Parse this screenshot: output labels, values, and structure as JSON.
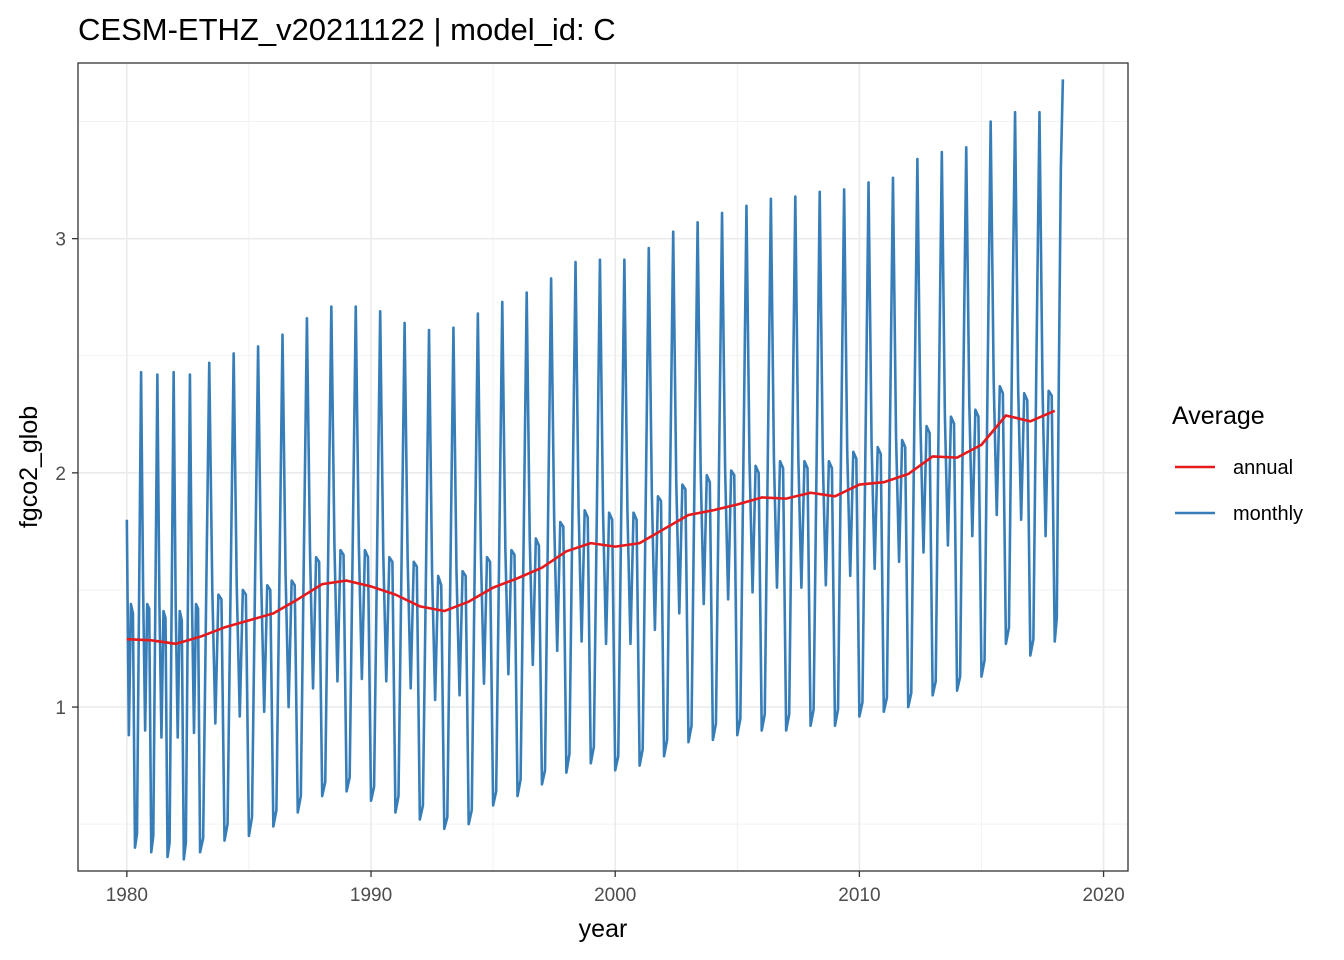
{
  "chart_data": {
    "type": "line",
    "title": "CESM-ETHZ_v20211122 | model_id: C",
    "xlabel": "year",
    "ylabel": "fgco2_glob",
    "xlim": [
      1978,
      2021
    ],
    "ylim": [
      0.3,
      3.75
    ],
    "x_ticks": [
      1980,
      1990,
      2000,
      2010,
      2020
    ],
    "x_tick_labels": [
      "1980",
      "1990",
      "2000",
      "2010",
      "2020"
    ],
    "y_ticks": [
      1,
      2,
      3
    ],
    "y_tick_labels": [
      "1",
      "2",
      "3"
    ],
    "grid": true,
    "legend": {
      "title": "Average",
      "placement": "right",
      "entries": [
        {
          "label": "annual",
          "color": "#e41a1c"
        },
        {
          "label": "monthly",
          "color": "#377eb8"
        }
      ]
    },
    "series": [
      {
        "name": "annual",
        "color": "#e41a1c",
        "x": [
          1980,
          1981,
          1982,
          1983,
          1984,
          1985,
          1986,
          1987,
          1988,
          1989,
          1990,
          1991,
          1992,
          1993,
          1994,
          1995,
          1996,
          1997,
          1998,
          1999,
          2000,
          2001,
          2002,
          2003,
          2004,
          2005,
          2006,
          2007,
          2008,
          2009,
          2010,
          2011,
          2012,
          2013,
          2014,
          2015,
          2016,
          2017,
          2018
        ],
        "y": [
          1.29,
          1.285,
          1.27,
          1.3,
          1.34,
          1.37,
          1.4,
          1.46,
          1.525,
          1.54,
          1.515,
          1.48,
          1.43,
          1.41,
          1.45,
          1.51,
          1.55,
          1.595,
          1.665,
          1.7,
          1.685,
          1.7,
          1.76,
          1.82,
          1.84,
          1.865,
          1.895,
          1.89,
          1.915,
          1.9,
          1.95,
          1.96,
          1.995,
          2.07,
          2.065,
          2.12,
          2.245,
          2.22,
          2.265
        ]
      },
      {
        "name": "monthly",
        "color": "#377eb8",
        "years": [
          1980,
          1981,
          1982,
          1983,
          1984,
          1985,
          1986,
          1987,
          1988,
          1989,
          1990,
          1991,
          1992,
          1993,
          1994,
          1995,
          1996,
          1997,
          1998,
          1999,
          2000,
          2001,
          2002,
          2003,
          2004,
          2005,
          2006,
          2007,
          2008,
          2009,
          2010,
          2011,
          2012,
          2013,
          2014,
          2015,
          2016,
          2017,
          2018
        ],
        "monthly_values": [
          [
            1.8,
            0.88,
            1.44,
            1.4,
            0.4,
            0.46,
            1.45,
            2.43,
            1.5,
            0.9,
            1.44,
            1.42
          ],
          [
            0.38,
            0.45,
            1.44,
            2.42,
            1.45,
            0.87,
            1.41,
            1.38,
            0.36,
            0.42,
            1.42,
            2.43
          ],
          [
            1.44,
            0.87,
            1.41,
            1.37,
            0.35,
            0.42,
            1.43,
            2.42,
            1.46,
            0.89,
            1.44,
            1.42
          ],
          [
            0.38,
            0.44,
            1.48,
            2.47,
            1.5,
            0.93,
            1.48,
            1.46
          ],
          [
            0.43,
            0.5,
            1.52,
            2.51,
            1.52,
            0.96,
            1.5,
            1.48
          ],
          [
            0.45,
            0.53,
            1.53,
            2.54,
            1.55,
            0.98,
            1.52,
            1.5
          ],
          [
            0.49,
            0.56,
            1.56,
            2.59,
            1.57,
            1.0,
            1.54,
            1.52
          ],
          [
            0.55,
            0.62,
            1.65,
            2.66,
            1.67,
            1.08,
            1.64,
            1.62
          ],
          [
            0.62,
            0.68,
            1.68,
            2.71,
            1.7,
            1.11,
            1.67,
            1.65
          ],
          [
            0.64,
            0.7,
            1.69,
            2.71,
            1.7,
            1.12,
            1.67,
            1.64
          ],
          [
            0.6,
            0.66,
            1.67,
            2.69,
            1.66,
            1.11,
            1.64,
            1.62
          ],
          [
            0.55,
            0.62,
            1.62,
            2.64,
            1.63,
            1.08,
            1.62,
            1.6
          ],
          [
            0.52,
            0.58,
            1.57,
            2.61,
            1.58,
            1.03,
            1.56,
            1.52
          ],
          [
            0.48,
            0.53,
            1.57,
            2.62,
            1.58,
            1.05,
            1.58,
            1.56
          ],
          [
            0.5,
            0.56,
            1.63,
            2.68,
            1.65,
            1.1,
            1.64,
            1.62
          ],
          [
            0.58,
            0.64,
            1.67,
            2.73,
            1.68,
            1.14,
            1.67,
            1.65
          ],
          [
            0.62,
            0.69,
            1.71,
            2.77,
            1.72,
            1.18,
            1.72,
            1.69
          ],
          [
            0.67,
            0.73,
            1.8,
            2.83,
            1.8,
            1.24,
            1.79,
            1.77
          ],
          [
            0.72,
            0.8,
            1.85,
            2.9,
            1.85,
            1.28,
            1.84,
            1.81
          ],
          [
            0.76,
            0.83,
            1.85,
            2.91,
            1.84,
            1.27,
            1.83,
            1.8
          ],
          [
            0.73,
            0.79,
            1.85,
            2.91,
            1.84,
            1.27,
            1.83,
            1.8
          ],
          [
            0.75,
            0.82,
            1.88,
            2.96,
            1.91,
            1.33,
            1.9,
            1.88
          ],
          [
            0.79,
            0.86,
            1.98,
            3.03,
            1.96,
            1.4,
            1.95,
            1.93
          ],
          [
            0.85,
            0.92,
            2.0,
            3.07,
            2.01,
            1.44,
            1.99,
            1.96
          ],
          [
            0.86,
            0.93,
            2.01,
            3.11,
            2.02,
            1.46,
            2.01,
            1.99
          ],
          [
            0.88,
            0.95,
            2.05,
            3.14,
            2.05,
            1.49,
            2.03,
            2.0
          ],
          [
            0.9,
            0.97,
            2.07,
            3.17,
            2.06,
            1.51,
            2.05,
            2.02
          ],
          [
            0.9,
            0.97,
            2.07,
            3.18,
            2.06,
            1.51,
            2.05,
            2.02
          ],
          [
            0.92,
            0.99,
            2.07,
            3.2,
            2.07,
            1.52,
            2.05,
            2.02
          ],
          [
            0.92,
            0.99,
            2.11,
            3.21,
            2.1,
            1.56,
            2.09,
            2.06
          ],
          [
            0.96,
            1.02,
            2.13,
            3.24,
            2.12,
            1.59,
            2.11,
            2.08
          ],
          [
            0.98,
            1.04,
            2.17,
            3.26,
            2.16,
            1.62,
            2.14,
            2.11
          ],
          [
            1.0,
            1.06,
            2.22,
            3.34,
            2.21,
            1.66,
            2.2,
            2.17
          ],
          [
            1.05,
            1.11,
            2.27,
            3.37,
            2.25,
            1.69,
            2.24,
            2.21
          ],
          [
            1.07,
            1.13,
            2.32,
            3.39,
            2.3,
            1.73,
            2.27,
            2.24
          ],
          [
            1.13,
            1.2,
            2.4,
            3.5,
            2.39,
            1.82,
            2.37,
            2.34
          ],
          [
            1.27,
            1.34,
            2.5,
            3.54,
            2.37,
            1.8,
            2.34,
            2.31
          ],
          [
            1.22,
            1.29,
            2.49,
            3.54,
            2.36,
            1.73,
            2.35,
            2.33
          ],
          [
            1.28,
            1.38,
            2.4,
            3.3,
            3.68
          ]
        ]
      }
    ]
  }
}
